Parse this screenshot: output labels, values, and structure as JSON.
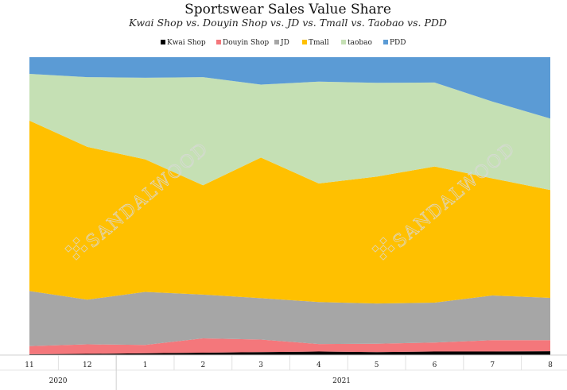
{
  "chart_data": {
    "type": "area",
    "stacked": true,
    "normalized": true,
    "title": "Sportswear Sales Value Share",
    "subtitle": "Kwai Shop vs. Douyin Shop vs. JD vs. Tmall vs. Taobao vs. PDD",
    "categories": [
      "11",
      "12",
      "1",
      "2",
      "3",
      "4",
      "5",
      "6",
      "7",
      "8"
    ],
    "year_groups": [
      {
        "label": "2020",
        "span": [
          0,
          1
        ]
      },
      {
        "label": "2021",
        "span": [
          2,
          9
        ]
      }
    ],
    "ylim": [
      0,
      100
    ],
    "legend_position": "top-center",
    "grid": false,
    "series": [
      {
        "name": "Kwai Shop",
        "color": "#000000",
        "values": [
          0.3,
          0.4,
          0.6,
          0.8,
          1.0,
          1.2,
          1.0,
          1.2,
          1.2,
          1.3
        ]
      },
      {
        "name": "Douyin Shop",
        "color": "#f4777b",
        "values": [
          2.7,
          3.2,
          2.8,
          4.8,
          4.2,
          2.5,
          2.8,
          3.0,
          3.8,
          3.7
        ]
      },
      {
        "name": "JD",
        "color": "#a6a6a6",
        "values": [
          18.5,
          15.0,
          17.8,
          14.7,
          13.9,
          14.1,
          13.5,
          13.4,
          15.0,
          14.2
        ]
      },
      {
        "name": "Tmall",
        "color": "#ffc000",
        "values": [
          57.2,
          51.3,
          44.5,
          36.7,
          47.2,
          39.8,
          42.6,
          45.7,
          39.3,
          36.2
        ]
      },
      {
        "name": "taobao",
        "color": "#c5e0b4",
        "values": [
          15.7,
          23.4,
          27.4,
          36.3,
          24.5,
          34.2,
          31.5,
          28.2,
          25.8,
          24.0
        ]
      },
      {
        "name": "PDD",
        "color": "#5b9bd5",
        "values": [
          5.6,
          6.7,
          6.9,
          6.7,
          9.2,
          8.2,
          8.6,
          8.5,
          14.9,
          20.6
        ]
      }
    ]
  },
  "watermark": {
    "text": "SANDALWOOD"
  }
}
